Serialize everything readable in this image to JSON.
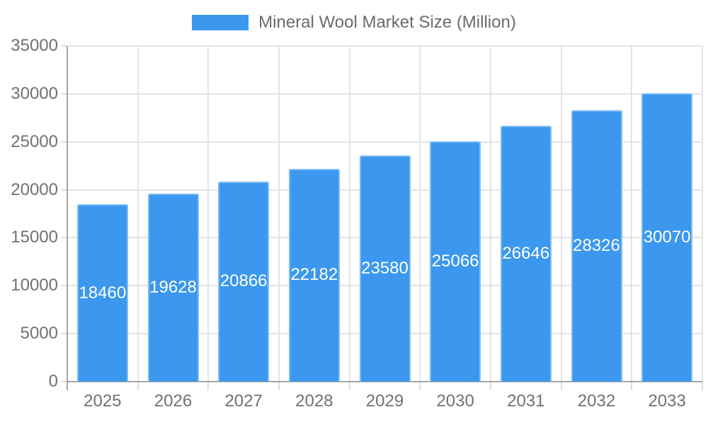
{
  "legend": {
    "label": "Mineral Wool Market Size (Million)"
  },
  "colors": {
    "bar": "#3b98ee",
    "axis_line": "#a5a5a5",
    "gridline": "#e4e4e4",
    "tick_mark": "#dcdcdc",
    "axis_text": "#717171",
    "legend_text": "#6b6b6b",
    "value_text": "#ffffff",
    "background": "#ffffff"
  },
  "chart_data": {
    "type": "bar",
    "title": "Mineral Wool Market Size (Million)",
    "categories": [
      "2025",
      "2026",
      "2027",
      "2028",
      "2029",
      "2030",
      "2031",
      "2032",
      "2033"
    ],
    "series": [
      {
        "name": "Mineral Wool Market Size (Million)",
        "values": [
          18460,
          19628,
          20866,
          22182,
          23580,
          25066,
          26646,
          28326,
          30070
        ]
      }
    ],
    "xlabel": "",
    "ylabel": "",
    "ylim": [
      0,
      35000
    ],
    "ytick_step": 5000,
    "ytick_labels": [
      "0",
      "5000",
      "10000",
      "15000",
      "20000",
      "25000",
      "30000",
      "35000"
    ],
    "grid": true,
    "legend_position": "top",
    "value_label_position": "inside-center",
    "value_label_color": "#ffffff"
  }
}
